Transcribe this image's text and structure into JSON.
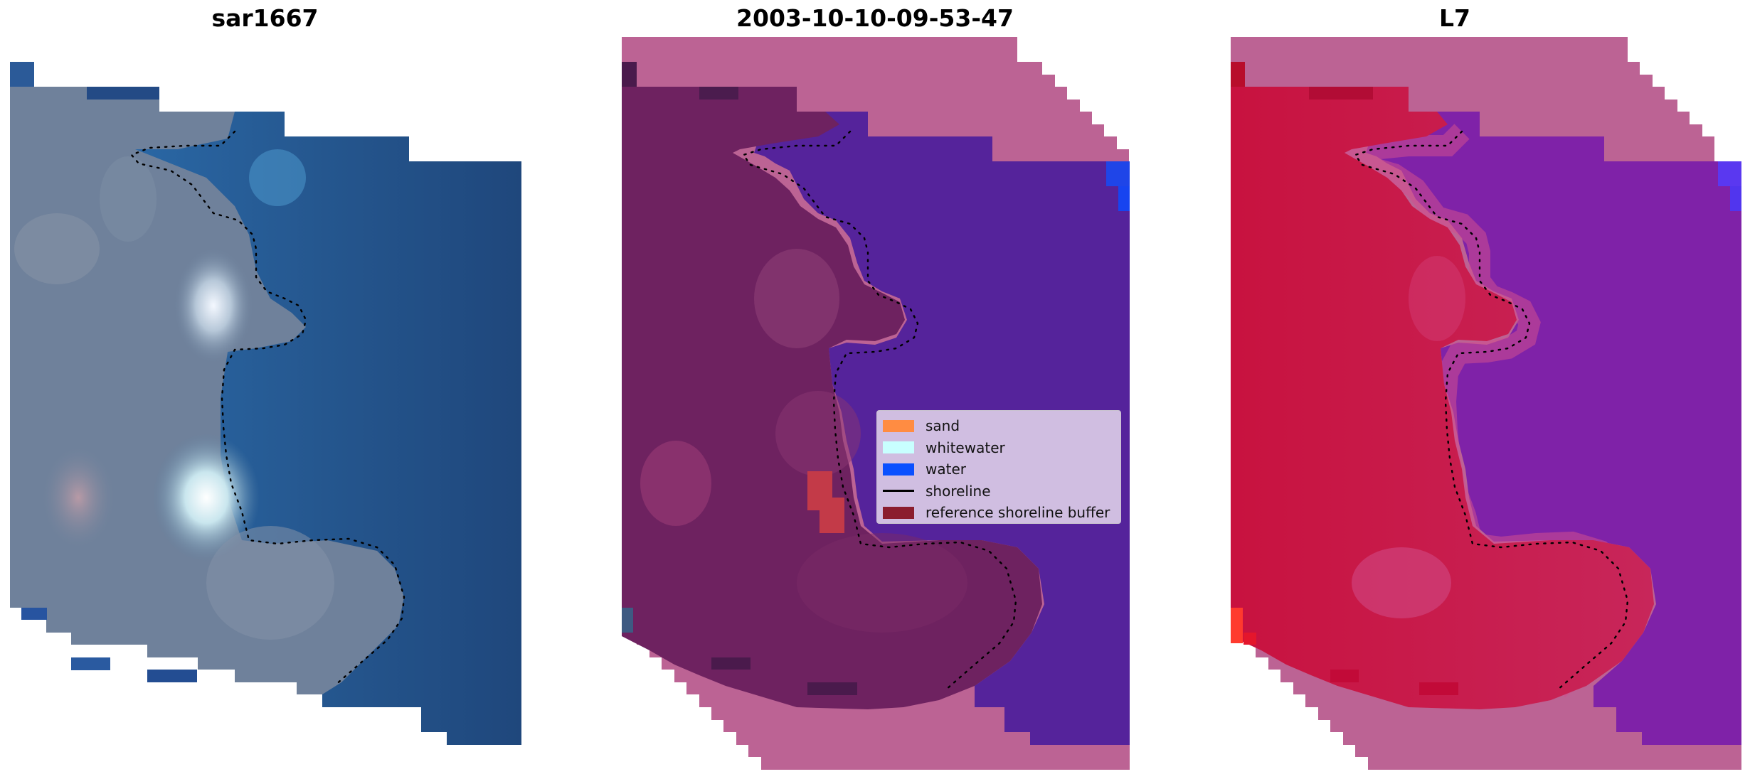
{
  "panels": [
    {
      "title": "sar1667"
    },
    {
      "title": "2003-10-10-09-53-47"
    },
    {
      "title": "L7"
    }
  ],
  "legend": {
    "items": [
      {
        "label": "sand",
        "kind": "patch",
        "color": "#ff8c42"
      },
      {
        "label": "whitewater",
        "kind": "patch",
        "color": "#c8ffff"
      },
      {
        "label": "water",
        "kind": "patch",
        "color": "#0a50ff"
      },
      {
        "label": "shoreline",
        "kind": "line",
        "color": "#000000"
      },
      {
        "label": "reference shoreline buffer",
        "kind": "patch",
        "color": "#8b1d2e"
      }
    ]
  },
  "colors": {
    "background": "#ffffff",
    "rgb_sea": "#2a5d97",
    "rgb_land": "#6b7f9a",
    "buffer_pink": "#bc6394",
    "classified_land": "#6e2260",
    "classified_water": "#55239b",
    "probability_land": "#c5184e",
    "probability_water": "#7f22a8",
    "shoreline_dots": "#000000"
  }
}
